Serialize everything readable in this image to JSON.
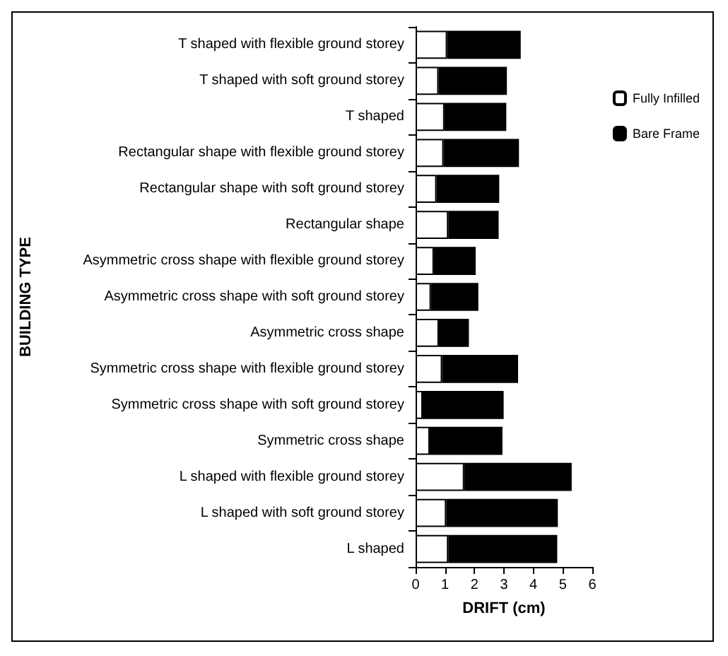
{
  "chart_data": {
    "type": "bar",
    "orientation": "horizontal",
    "stacked": true,
    "xlabel": "DRIFT (cm)",
    "ylabel": "BUILDING TYPE",
    "categories": [
      "T shaped with flexible ground storey",
      "T shaped with soft ground storey",
      "T shaped",
      "Rectangular shape with flexible ground storey",
      "Rectangular shape with soft ground storey",
      "Rectangular shape",
      "Asymmetric cross shape with flexible ground storey",
      "Asymmetric cross shape with soft ground storey",
      "Asymmetric cross shape",
      "Symmetric cross shape with flexible ground storey",
      "Symmetric cross shape with soft ground storey",
      "Symmetric cross shape",
      "L shaped with flexible ground storey",
      "L shaped with soft ground storey",
      "L shaped"
    ],
    "series": [
      {
        "name": "Fully Infilled",
        "color": "#ffffff",
        "values": [
          1.07,
          0.78,
          0.98,
          0.95,
          0.71,
          1.11,
          0.62,
          0.52,
          0.79,
          0.9,
          0.24,
          0.48,
          1.65,
          1.04,
          1.11
        ]
      },
      {
        "name": "Bare Frame",
        "color": "#000000",
        "values": [
          2.5,
          2.32,
          2.1,
          2.56,
          2.13,
          1.71,
          1.42,
          1.61,
          1.02,
          2.58,
          2.75,
          2.47,
          3.65,
          3.79,
          3.7
        ]
      }
    ],
    "xlim": [
      0,
      6
    ],
    "xticks": [
      0,
      1,
      2,
      3,
      4,
      5,
      6
    ],
    "grid": false,
    "legend": "top right"
  }
}
